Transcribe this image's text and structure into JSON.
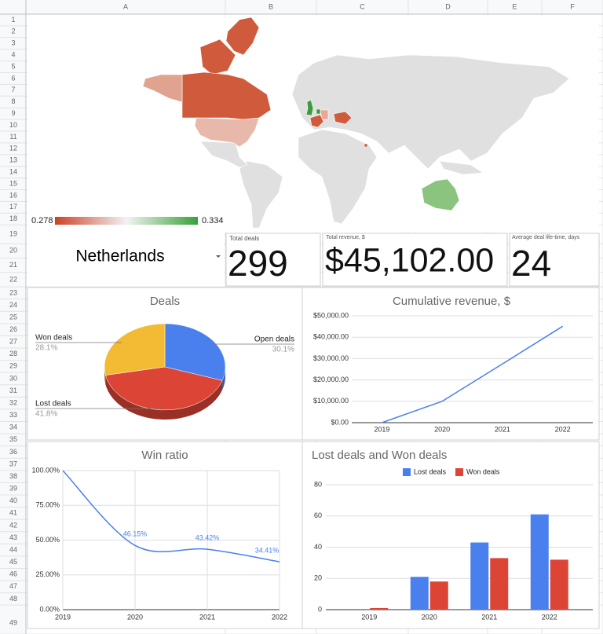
{
  "sheet": {
    "columns": [
      "A",
      "B",
      "C",
      "D",
      "E",
      "F"
    ],
    "rows": [
      1,
      2,
      3,
      4,
      5,
      6,
      7,
      8,
      9,
      10,
      11,
      12,
      13,
      14,
      15,
      16,
      17,
      18,
      19,
      20,
      21,
      22,
      23,
      24,
      25,
      26,
      27,
      28,
      29,
      30,
      31,
      32,
      33,
      34,
      35,
      36,
      37,
      38,
      39,
      40,
      41,
      42,
      43,
      44,
      45,
      46,
      47,
      48,
      49
    ]
  },
  "selector": {
    "value": "Netherlands"
  },
  "kpis": [
    {
      "label": "Total deals",
      "value": 299
    },
    {
      "label": "Total revenue, $",
      "value": 45102,
      "value_label": "$45,102.00"
    },
    {
      "label": "Average deal life-time, days",
      "value": 24
    }
  ],
  "chart_data": [
    {
      "type": "geo",
      "colorbar": {
        "min": 0.278,
        "max": 0.334,
        "colors": [
          "#cc4125",
          "#f3f3f3",
          "#38a038"
        ]
      }
    },
    {
      "type": "pie",
      "title": "Deals",
      "is3D": true,
      "categories": [
        "Open deals",
        "Lost deals",
        "Won deals"
      ],
      "values": [
        30.1,
        41.8,
        28.1
      ],
      "value_labels": [
        "30.1%",
        "41.8%",
        "28.1%"
      ],
      "colors": [
        "#4a80ee",
        "#dc4535",
        "#f2bb33"
      ]
    },
    {
      "type": "line",
      "title": "Cumulative revenue, $",
      "color": "#4a80ee",
      "grid": true,
      "categories": [
        2019,
        2020,
        2021,
        2022
      ],
      "values": [
        0,
        10000,
        27500,
        45102
      ],
      "ylim": [
        0,
        50000
      ],
      "yticks": [
        {
          "value": 0,
          "label": "$0.00"
        },
        {
          "value": 10000,
          "label": "$10,000.00"
        },
        {
          "value": 20000,
          "label": "$20,000.00"
        },
        {
          "value": 30000,
          "label": "$30,000.00"
        },
        {
          "value": 40000,
          "label": "$40,000.00"
        },
        {
          "value": 50000,
          "label": "$50,000.00"
        }
      ]
    },
    {
      "type": "line",
      "title": "Win ratio",
      "color": "#4a80ee",
      "grid": true,
      "curve": "smooth",
      "categories": [
        2019,
        2020,
        2021,
        2022
      ],
      "values": [
        100,
        46.15,
        43.42,
        34.41
      ],
      "value_labels": [
        null,
        "46.15%",
        "43.42%",
        "34.41%"
      ],
      "ylim": [
        0,
        100
      ],
      "yticks": [
        {
          "value": 0,
          "label": "0.00%"
        },
        {
          "value": 25,
          "label": "25.00%"
        },
        {
          "value": 50,
          "label": "50.00%"
        },
        {
          "value": 75,
          "label": "75.00%"
        },
        {
          "value": 100,
          "label": "100.00%"
        }
      ]
    },
    {
      "type": "bar",
      "title": "Lost deals and Won deals",
      "legend": "top",
      "grid": true,
      "categories": [
        2019,
        2020,
        2021,
        2022
      ],
      "series": [
        {
          "name": "Lost deals",
          "color": "#4a80ee",
          "values": [
            0,
            21,
            43,
            61
          ]
        },
        {
          "name": "Won deals",
          "color": "#dc4535",
          "values": [
            1,
            18,
            33,
            32
          ]
        }
      ],
      "ylim": [
        0,
        80
      ],
      "yticks": [
        0,
        20,
        40,
        60,
        80
      ]
    }
  ]
}
